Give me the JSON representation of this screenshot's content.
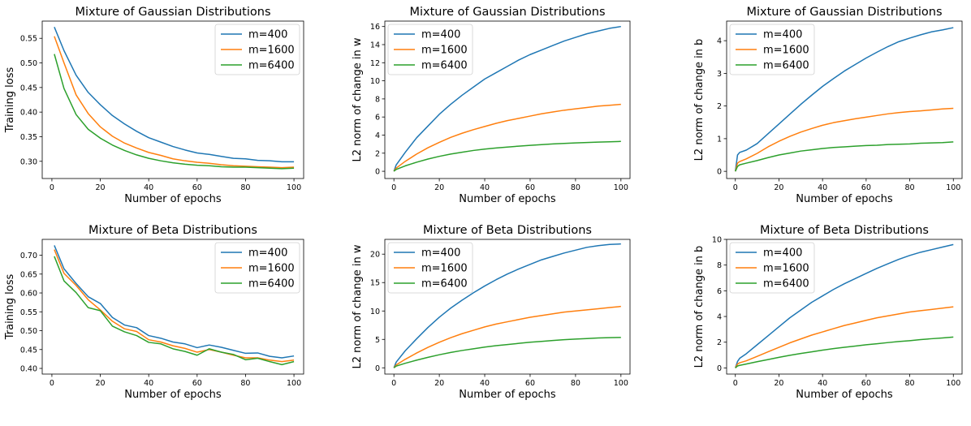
{
  "chart_data": [
    {
      "type": "line",
      "title": "Mixture of Gaussian Distributions",
      "xlabel": "Number of epochs",
      "ylabel": "Training loss",
      "xlim": [
        -4,
        104
      ],
      "ylim": [
        0.265,
        0.585
      ],
      "xticks": [
        0,
        20,
        40,
        60,
        80,
        100
      ],
      "yticks": [
        0.3,
        0.35,
        0.4,
        0.45,
        0.5,
        0.55
      ],
      "ytick_labels": [
        "0.30",
        "0.35",
        "0.40",
        "0.45",
        "0.50",
        "0.55"
      ],
      "legend_position": "top-right",
      "series": [
        {
          "name": "m=400",
          "color": "#1f77b4",
          "x": [
            1,
            5,
            10,
            15,
            20,
            25,
            30,
            35,
            40,
            45,
            50,
            55,
            60,
            65,
            70,
            75,
            80,
            85,
            90,
            95,
            100
          ],
          "y": [
            0.573,
            0.525,
            0.475,
            0.44,
            0.415,
            0.393,
            0.376,
            0.361,
            0.348,
            0.339,
            0.33,
            0.323,
            0.317,
            0.314,
            0.31,
            0.306,
            0.305,
            0.302,
            0.301,
            0.299,
            0.299
          ]
        },
        {
          "name": "m=1600",
          "color": "#ff7f0e",
          "x": [
            1,
            5,
            10,
            15,
            20,
            25,
            30,
            35,
            40,
            45,
            50,
            55,
            60,
            65,
            70,
            75,
            80,
            85,
            90,
            95,
            100
          ],
          "y": [
            0.554,
            0.5,
            0.435,
            0.397,
            0.37,
            0.351,
            0.337,
            0.327,
            0.318,
            0.312,
            0.305,
            0.301,
            0.298,
            0.296,
            0.293,
            0.291,
            0.29,
            0.289,
            0.288,
            0.287,
            0.288
          ]
        },
        {
          "name": "m=6400",
          "color": "#2ca02c",
          "x": [
            1,
            5,
            10,
            15,
            20,
            25,
            30,
            35,
            40,
            45,
            50,
            55,
            60,
            65,
            70,
            75,
            80,
            85,
            90,
            95,
            100
          ],
          "y": [
            0.518,
            0.448,
            0.395,
            0.365,
            0.347,
            0.333,
            0.322,
            0.313,
            0.306,
            0.301,
            0.297,
            0.294,
            0.292,
            0.291,
            0.289,
            0.288,
            0.288,
            0.287,
            0.286,
            0.285,
            0.286
          ]
        }
      ]
    },
    {
      "type": "line",
      "title": "Mixture of Gaussian Distributions",
      "xlabel": "Number of epochs",
      "ylabel": "L2 norm of change in w",
      "xlim": [
        -4,
        104
      ],
      "ylim": [
        -0.8,
        16.6
      ],
      "xticks": [
        0,
        20,
        40,
        60,
        80,
        100
      ],
      "yticks": [
        0,
        2,
        4,
        6,
        8,
        10,
        12,
        14,
        16
      ],
      "ytick_labels": [
        "0",
        "2",
        "4",
        "6",
        "8",
        "10",
        "12",
        "14",
        "16"
      ],
      "legend_position": "top-left",
      "series": [
        {
          "name": "m=400",
          "color": "#1f77b4",
          "x": [
            0,
            1,
            5,
            10,
            15,
            20,
            25,
            30,
            35,
            40,
            45,
            50,
            55,
            60,
            65,
            70,
            75,
            80,
            85,
            90,
            95,
            100
          ],
          "y": [
            0,
            0.7,
            2.1,
            3.7,
            5.0,
            6.3,
            7.4,
            8.4,
            9.3,
            10.2,
            10.9,
            11.6,
            12.3,
            12.9,
            13.4,
            13.9,
            14.4,
            14.8,
            15.2,
            15.5,
            15.8,
            16.0
          ]
        },
        {
          "name": "m=1600",
          "color": "#ff7f0e",
          "x": [
            0,
            1,
            5,
            10,
            15,
            20,
            25,
            30,
            35,
            40,
            45,
            50,
            55,
            60,
            65,
            70,
            75,
            80,
            85,
            90,
            95,
            100
          ],
          "y": [
            0,
            0.35,
            1.1,
            1.9,
            2.6,
            3.2,
            3.75,
            4.2,
            4.6,
            4.95,
            5.3,
            5.6,
            5.85,
            6.1,
            6.35,
            6.55,
            6.75,
            6.9,
            7.05,
            7.2,
            7.3,
            7.4
          ]
        },
        {
          "name": "m=6400",
          "color": "#2ca02c",
          "x": [
            0,
            1,
            5,
            10,
            15,
            20,
            25,
            30,
            35,
            40,
            45,
            50,
            55,
            60,
            65,
            70,
            75,
            80,
            85,
            90,
            95,
            100
          ],
          "y": [
            0,
            0.2,
            0.6,
            1.0,
            1.35,
            1.65,
            1.9,
            2.1,
            2.3,
            2.45,
            2.57,
            2.68,
            2.78,
            2.87,
            2.95,
            3.02,
            3.08,
            3.13,
            3.18,
            3.22,
            3.26,
            3.3
          ]
        }
      ]
    },
    {
      "type": "line",
      "title": "Mixture of Gaussian Distributions",
      "xlabel": "Number of epochs",
      "ylabel": "L2 norm of change in b",
      "xlim": [
        -4,
        104
      ],
      "ylim": [
        -0.22,
        4.6
      ],
      "xticks": [
        0,
        20,
        40,
        60,
        80,
        100
      ],
      "yticks": [
        0,
        1,
        2,
        3,
        4
      ],
      "ytick_labels": [
        "0",
        "1",
        "2",
        "3",
        "4"
      ],
      "legend_position": "top-left",
      "series": [
        {
          "name": "m=400",
          "color": "#1f77b4",
          "x": [
            0,
            1,
            2,
            5,
            10,
            15,
            20,
            25,
            30,
            35,
            40,
            45,
            50,
            55,
            60,
            65,
            70,
            75,
            80,
            85,
            90,
            95,
            100
          ],
          "y": [
            0,
            0.5,
            0.58,
            0.65,
            0.85,
            1.15,
            1.45,
            1.75,
            2.05,
            2.33,
            2.6,
            2.84,
            3.07,
            3.27,
            3.47,
            3.65,
            3.82,
            3.97,
            4.08,
            4.18,
            4.27,
            4.33,
            4.4
          ]
        },
        {
          "name": "m=1600",
          "color": "#ff7f0e",
          "x": [
            0,
            1,
            2,
            5,
            10,
            15,
            20,
            25,
            30,
            35,
            40,
            45,
            50,
            55,
            60,
            65,
            70,
            75,
            80,
            85,
            90,
            95,
            100
          ],
          "y": [
            0,
            0.25,
            0.3,
            0.38,
            0.55,
            0.75,
            0.92,
            1.07,
            1.2,
            1.31,
            1.41,
            1.49,
            1.55,
            1.61,
            1.66,
            1.71,
            1.76,
            1.8,
            1.83,
            1.85,
            1.88,
            1.91,
            1.93
          ]
        },
        {
          "name": "m=6400",
          "color": "#2ca02c",
          "x": [
            0,
            1,
            2,
            5,
            10,
            15,
            20,
            25,
            30,
            35,
            40,
            45,
            50,
            55,
            60,
            65,
            70,
            75,
            80,
            85,
            90,
            95,
            100
          ],
          "y": [
            0,
            0.15,
            0.2,
            0.25,
            0.33,
            0.42,
            0.5,
            0.56,
            0.62,
            0.66,
            0.7,
            0.73,
            0.75,
            0.77,
            0.79,
            0.8,
            0.82,
            0.83,
            0.84,
            0.86,
            0.87,
            0.88,
            0.9
          ]
        }
      ]
    },
    {
      "type": "line",
      "title": "Mixture of Beta Distributions",
      "xlabel": "Number of epochs",
      "ylabel": "Training loss",
      "xlim": [
        -4,
        104
      ],
      "ylim": [
        0.385,
        0.742
      ],
      "xticks": [
        0,
        20,
        40,
        60,
        80,
        100
      ],
      "yticks": [
        0.4,
        0.45,
        0.5,
        0.55,
        0.6,
        0.65,
        0.7
      ],
      "ytick_labels": [
        "0.40",
        "0.45",
        "0.50",
        "0.55",
        "0.60",
        "0.65",
        "0.70"
      ],
      "legend_position": "top-right",
      "series": [
        {
          "name": "m=400",
          "color": "#1f77b4",
          "x": [
            1,
            5,
            10,
            15,
            20,
            25,
            30,
            35,
            40,
            45,
            50,
            55,
            60,
            65,
            70,
            75,
            80,
            85,
            90,
            95,
            100
          ],
          "y": [
            0.726,
            0.664,
            0.625,
            0.59,
            0.572,
            0.535,
            0.515,
            0.508,
            0.487,
            0.48,
            0.47,
            0.465,
            0.455,
            0.462,
            0.456,
            0.448,
            0.44,
            0.441,
            0.432,
            0.428,
            0.433
          ]
        },
        {
          "name": "m=1600",
          "color": "#ff7f0e",
          "x": [
            1,
            5,
            10,
            15,
            20,
            25,
            30,
            35,
            40,
            45,
            50,
            55,
            60,
            65,
            70,
            75,
            80,
            85,
            90,
            95,
            100
          ],
          "y": [
            0.715,
            0.652,
            0.62,
            0.582,
            0.555,
            0.525,
            0.505,
            0.498,
            0.476,
            0.47,
            0.46,
            0.453,
            0.443,
            0.45,
            0.443,
            0.435,
            0.428,
            0.428,
            0.422,
            0.418,
            0.422
          ]
        },
        {
          "name": "m=6400",
          "color": "#2ca02c",
          "x": [
            1,
            5,
            10,
            15,
            20,
            25,
            30,
            35,
            40,
            45,
            50,
            55,
            60,
            65,
            70,
            75,
            80,
            85,
            90,
            95,
            100
          ],
          "y": [
            0.697,
            0.632,
            0.601,
            0.561,
            0.553,
            0.512,
            0.497,
            0.487,
            0.469,
            0.465,
            0.452,
            0.445,
            0.435,
            0.452,
            0.443,
            0.437,
            0.423,
            0.427,
            0.418,
            0.41,
            0.418
          ]
        }
      ]
    },
    {
      "type": "line",
      "title": "Mixture of Beta Distributions",
      "xlabel": "Number of epochs",
      "ylabel": "L2 norm of change in w",
      "xlim": [
        -4,
        104
      ],
      "ylim": [
        -1.1,
        22.6
      ],
      "xticks": [
        0,
        20,
        40,
        60,
        80,
        100
      ],
      "yticks": [
        0,
        5,
        10,
        15,
        20
      ],
      "ytick_labels": [
        "0",
        "5",
        "10",
        "15",
        "20"
      ],
      "legend_position": "top-left",
      "series": [
        {
          "name": "m=400",
          "color": "#1f77b4",
          "x": [
            0,
            1,
            5,
            10,
            15,
            20,
            25,
            30,
            35,
            40,
            45,
            50,
            55,
            60,
            65,
            70,
            75,
            80,
            85,
            90,
            95,
            100
          ],
          "y": [
            0,
            1.0,
            3.0,
            5.1,
            7.1,
            8.9,
            10.5,
            11.9,
            13.2,
            14.4,
            15.5,
            16.5,
            17.4,
            18.2,
            19.0,
            19.6,
            20.2,
            20.7,
            21.2,
            21.5,
            21.7,
            21.8
          ]
        },
        {
          "name": "m=1600",
          "color": "#ff7f0e",
          "x": [
            0,
            1,
            5,
            10,
            15,
            20,
            25,
            30,
            35,
            40,
            45,
            50,
            55,
            60,
            65,
            70,
            75,
            80,
            85,
            90,
            95,
            100
          ],
          "y": [
            0,
            0.5,
            1.5,
            2.6,
            3.6,
            4.5,
            5.3,
            6.0,
            6.6,
            7.2,
            7.7,
            8.1,
            8.5,
            8.9,
            9.2,
            9.5,
            9.8,
            10.0,
            10.2,
            10.4,
            10.6,
            10.8
          ]
        },
        {
          "name": "m=6400",
          "color": "#2ca02c",
          "x": [
            0,
            1,
            5,
            10,
            15,
            20,
            25,
            30,
            35,
            40,
            45,
            50,
            55,
            60,
            65,
            70,
            75,
            80,
            85,
            90,
            95,
            100
          ],
          "y": [
            0,
            0.3,
            0.8,
            1.35,
            1.85,
            2.3,
            2.7,
            3.05,
            3.35,
            3.65,
            3.9,
            4.1,
            4.3,
            4.5,
            4.65,
            4.8,
            4.95,
            5.05,
            5.15,
            5.25,
            5.3,
            5.35
          ]
        }
      ]
    },
    {
      "type": "line",
      "title": "Mixture of Beta Distributions",
      "xlabel": "Number of epochs",
      "ylabel": "L2 norm of change in b",
      "xlim": [
        -4,
        104
      ],
      "ylim": [
        -0.48,
        10.0
      ],
      "xticks": [
        0,
        20,
        40,
        60,
        80,
        100
      ],
      "yticks": [
        0,
        2,
        4,
        6,
        8,
        10
      ],
      "ytick_labels": [
        "0",
        "2",
        "4",
        "6",
        "8",
        "10"
      ],
      "legend_position": "top-left",
      "series": [
        {
          "name": "m=400",
          "color": "#1f77b4",
          "x": [
            0,
            1,
            2,
            5,
            10,
            15,
            20,
            25,
            30,
            35,
            40,
            45,
            50,
            55,
            60,
            65,
            70,
            75,
            80,
            85,
            90,
            95,
            100
          ],
          "y": [
            0,
            0.5,
            0.75,
            1.1,
            1.8,
            2.5,
            3.2,
            3.9,
            4.5,
            5.1,
            5.6,
            6.1,
            6.55,
            6.95,
            7.35,
            7.75,
            8.1,
            8.45,
            8.75,
            9.0,
            9.2,
            9.4,
            9.6
          ]
        },
        {
          "name": "m=1600",
          "color": "#ff7f0e",
          "x": [
            0,
            1,
            2,
            5,
            10,
            15,
            20,
            25,
            30,
            35,
            40,
            45,
            50,
            55,
            60,
            65,
            70,
            75,
            80,
            85,
            90,
            95,
            100
          ],
          "y": [
            0,
            0.3,
            0.4,
            0.55,
            0.9,
            1.25,
            1.6,
            1.95,
            2.25,
            2.55,
            2.8,
            3.05,
            3.3,
            3.5,
            3.7,
            3.9,
            4.05,
            4.2,
            4.35,
            4.45,
            4.55,
            4.65,
            4.75
          ]
        },
        {
          "name": "m=6400",
          "color": "#2ca02c",
          "x": [
            0,
            1,
            2,
            5,
            10,
            15,
            20,
            25,
            30,
            35,
            40,
            45,
            50,
            55,
            60,
            65,
            70,
            75,
            80,
            85,
            90,
            95,
            100
          ],
          "y": [
            0,
            0.15,
            0.2,
            0.3,
            0.48,
            0.65,
            0.82,
            0.98,
            1.12,
            1.25,
            1.38,
            1.5,
            1.6,
            1.7,
            1.8,
            1.88,
            1.97,
            2.05,
            2.12,
            2.2,
            2.27,
            2.33,
            2.4
          ]
        }
      ]
    }
  ]
}
